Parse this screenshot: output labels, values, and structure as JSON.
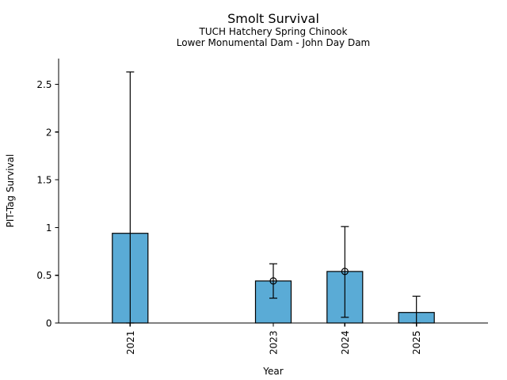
{
  "chart_data": {
    "type": "bar",
    "title": "Smolt Survival",
    "subtitle": [
      "TUCH Hatchery Spring Chinook",
      "Lower Monumental Dam - John Day Dam"
    ],
    "xlabel": "Year",
    "ylabel": "PIT-Tag Survival",
    "categories": [
      "2021",
      "2023",
      "2024",
      "2025"
    ],
    "x": [
      2021,
      2023,
      2024,
      2025
    ],
    "values": [
      0.94,
      0.44,
      0.54,
      0.11
    ],
    "error_low": [
      0.0,
      0.26,
      0.06,
      0.0
    ],
    "error_high": [
      2.63,
      0.62,
      1.01,
      0.28
    ],
    "point_marker": [
      false,
      true,
      true,
      false
    ],
    "yticks": [
      0,
      0.5,
      1,
      1.5,
      2,
      2.5
    ],
    "ytick_labels": [
      "0",
      "0.5",
      "1",
      "1.5",
      "2",
      "2.5"
    ],
    "ylim": [
      0,
      2.77
    ],
    "xlim": [
      2020,
      2026
    ],
    "grid": false,
    "legend_position": "none",
    "bar_color": "#5AABD6",
    "bar_edge_color": "#000000",
    "error_bar_color": "#000000",
    "axis_color": "#000000"
  }
}
